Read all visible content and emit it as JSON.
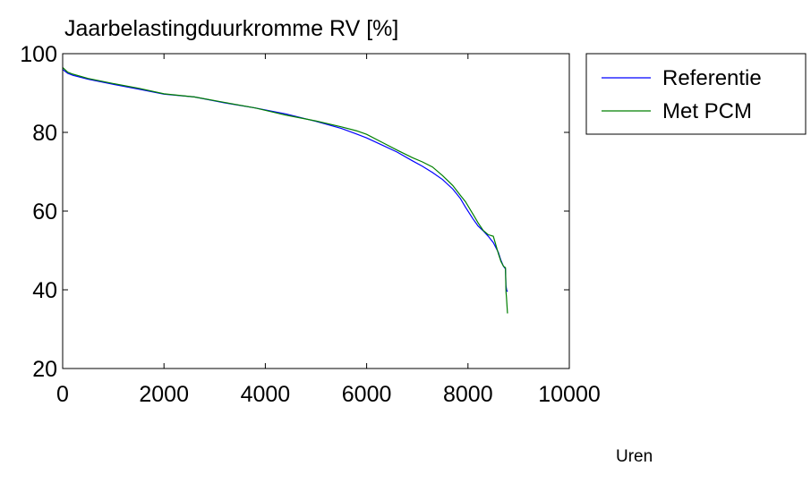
{
  "chart_data": {
    "type": "line",
    "title": "Jaarbelastingduurkromme RV [%]",
    "xlabel": "Uren",
    "ylabel": "",
    "xlim": [
      0,
      10000
    ],
    "ylim": [
      20,
      100
    ],
    "xticks": [
      0,
      2000,
      4000,
      6000,
      8000,
      10000
    ],
    "yticks": [
      20,
      40,
      60,
      80,
      100
    ],
    "grid": false,
    "legend": {
      "placement": "outside-top-right"
    },
    "series": [
      {
        "name": "Referentie",
        "color": "#0000ff",
        "x": [
          0,
          100,
          200,
          500,
          1000,
          1500,
          2000,
          2600,
          3200,
          3800,
          4400,
          5000,
          5500,
          5800,
          6000,
          6300,
          6600,
          6900,
          7100,
          7300,
          7500,
          7700,
          7850,
          7950,
          8100,
          8200,
          8300,
          8400,
          8500,
          8600,
          8650,
          8700,
          8740,
          8750,
          8760,
          8770,
          8780
        ],
        "y": [
          96,
          95,
          94.5,
          93.5,
          92.2,
          91,
          89.7,
          89,
          87.5,
          86.2,
          84.7,
          82.8,
          81,
          79.6,
          78.6,
          76.8,
          75,
          72.8,
          71.4,
          69.8,
          68,
          65.6,
          63.2,
          61,
          58,
          56.2,
          55,
          53.6,
          52,
          49.5,
          47.5,
          46,
          45.3,
          41,
          40.2,
          39.7,
          39.5
        ]
      },
      {
        "name": "Met PCM",
        "color": "#007f00",
        "x": [
          0,
          100,
          200,
          500,
          1000,
          1500,
          2000,
          2600,
          3200,
          3800,
          4400,
          5000,
          5500,
          5800,
          6000,
          6300,
          6600,
          6900,
          7100,
          7300,
          7500,
          7700,
          7850,
          7950,
          8100,
          8200,
          8300,
          8400,
          8500,
          8600,
          8650,
          8700,
          8740,
          8750,
          8760,
          8770,
          8780
        ],
        "y": [
          96.5,
          95.3,
          94.8,
          93.7,
          92.4,
          91.2,
          89.8,
          89,
          87.6,
          86.2,
          84.4,
          82.9,
          81.4,
          80.4,
          79.5,
          77.5,
          75.5,
          73.6,
          72.5,
          71.2,
          69,
          66.5,
          64,
          62.4,
          59.2,
          57,
          55.1,
          54,
          53.6,
          49.2,
          47.2,
          46,
          45.6,
          39.5,
          38,
          36,
          34
        ]
      }
    ]
  }
}
